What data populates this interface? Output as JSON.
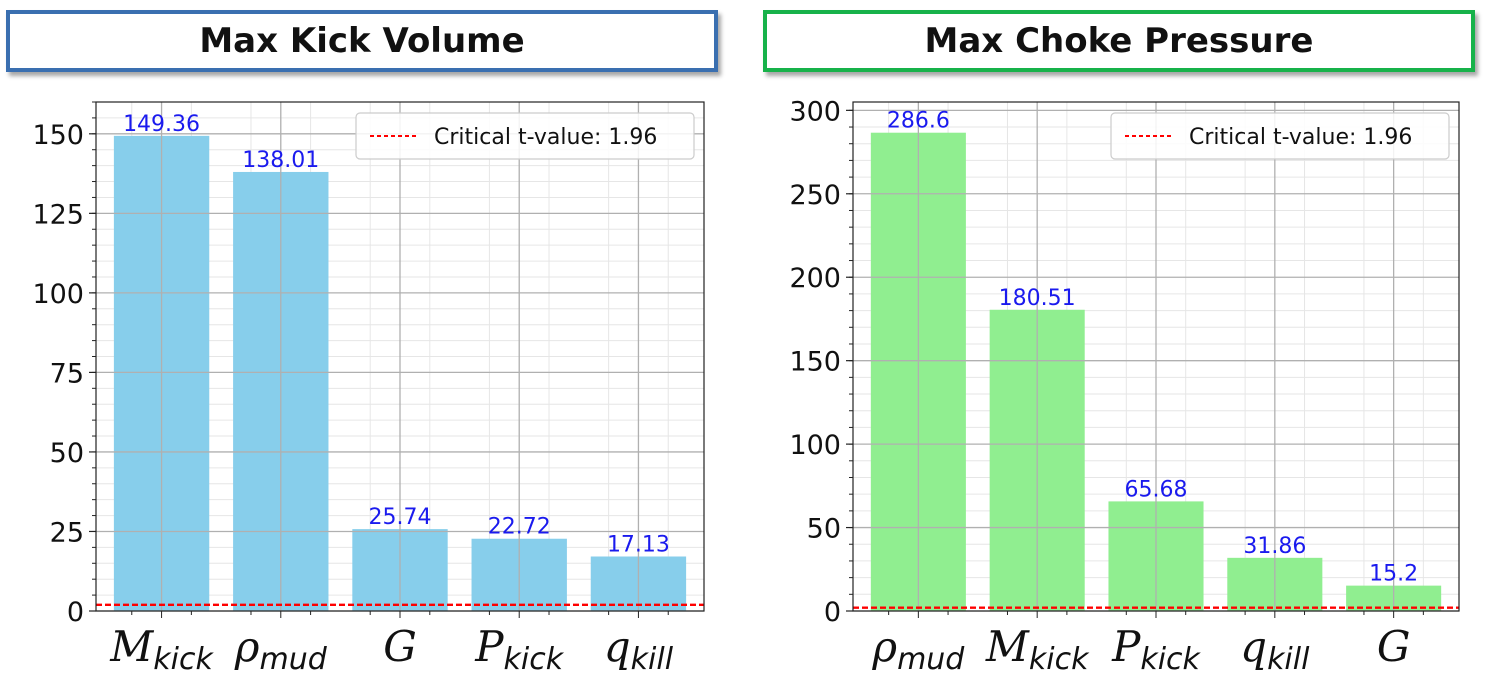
{
  "chart_data": [
    {
      "type": "bar",
      "title": "Max Kick Volume",
      "categories": [
        {
          "base": "M",
          "sub": "kick"
        },
        {
          "base": "ρ",
          "sub": "mud"
        },
        {
          "base": "G",
          "sub": ""
        },
        {
          "base": "P",
          "sub": "kick"
        },
        {
          "base": "q",
          "sub": "kill"
        }
      ],
      "values": [
        149.36,
        138.01,
        25.74,
        22.72,
        17.13
      ],
      "value_labels": [
        "149.36",
        "138.01",
        "25.74",
        "22.72",
        "17.13"
      ],
      "ylim": [
        0,
        160
      ],
      "yticks": [
        0,
        25,
        50,
        75,
        100,
        125,
        150
      ],
      "ytick_labels": [
        "0",
        "25",
        "50",
        "75",
        "100",
        "125",
        "150"
      ],
      "minor_step": 5,
      "critical_value": 1.96,
      "legend_label": "Critical t-value: 1.96",
      "legend_position": "top-right",
      "grid": true,
      "bar_color": "#87ceeb",
      "xlabel": "",
      "ylabel": ""
    },
    {
      "type": "bar",
      "title": "Max Choke Pressure",
      "categories": [
        {
          "base": "ρ",
          "sub": "mud"
        },
        {
          "base": "M",
          "sub": "kick"
        },
        {
          "base": "P",
          "sub": "kick"
        },
        {
          "base": "q",
          "sub": "kill"
        },
        {
          "base": "G",
          "sub": ""
        }
      ],
      "values": [
        286.6,
        180.51,
        65.68,
        31.86,
        15.2
      ],
      "value_labels": [
        "286.6",
        "180.51",
        "65.68",
        "31.86",
        "15.2"
      ],
      "ylim": [
        0,
        305
      ],
      "yticks": [
        0,
        50,
        100,
        150,
        200,
        250,
        300
      ],
      "ytick_labels": [
        "0",
        "50",
        "100",
        "150",
        "200",
        "250",
        "300"
      ],
      "minor_step": 10,
      "critical_value": 1.96,
      "legend_label": "Critical t-value: 1.96",
      "legend_position": "top-right",
      "grid": true,
      "bar_color": "#90ee90",
      "xlabel": "",
      "ylabel": ""
    }
  ],
  "colors": {
    "value_label": "#1a1aee",
    "critical_line": "#ff0000",
    "left_title_border": "#3a6fb0",
    "right_title_border": "#17b24a"
  }
}
